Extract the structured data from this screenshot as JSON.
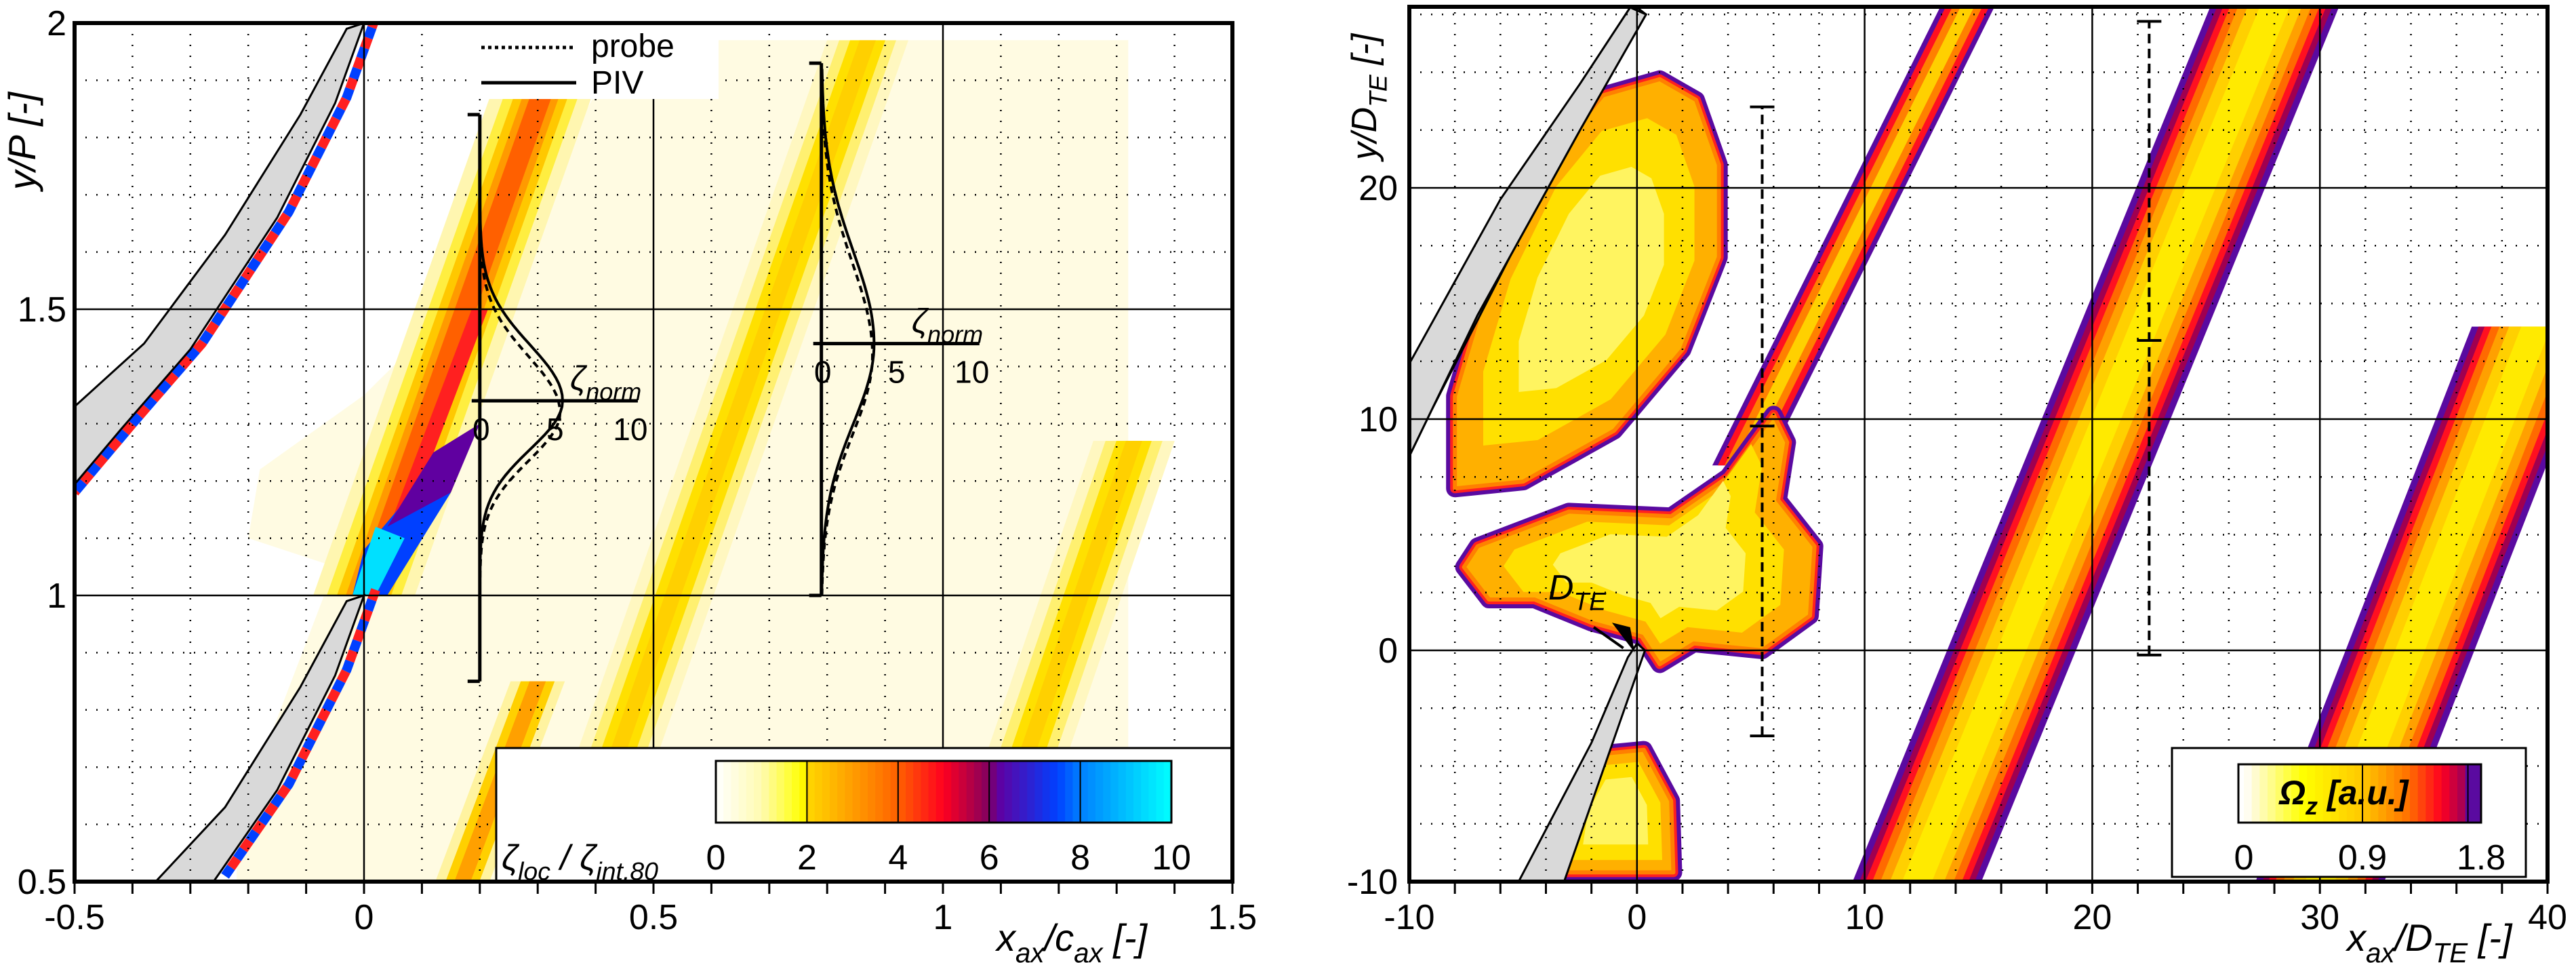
{
  "chart_data": [
    {
      "type": "heatmap",
      "variant": "filled-contour",
      "xlabel": {
        "a": "x",
        "a_sub": "ax",
        "sep": "/",
        "b": "c",
        "b_sub": "ax",
        "unit": " [-]"
      },
      "ylabel": {
        "a": "y",
        "sep": "/",
        "b": "P",
        "unit": " [-]"
      },
      "xlim": [
        -0.5,
        1.5
      ],
      "ylim": [
        0.5,
        2
      ],
      "x_ticks": [
        -0.5,
        0,
        0.5,
        1,
        1.5
      ],
      "x_tick_labels": [
        "-0.5",
        "0",
        "0.5",
        "1",
        "1.5"
      ],
      "y_ticks": [
        0.5,
        1,
        1.5,
        2
      ],
      "y_tick_labels": [
        "0.5",
        "1",
        "1.5",
        "2"
      ],
      "grid": {
        "major": "solid",
        "minor": "dotted"
      },
      "colorbar": {
        "label": {
          "a": "ζ",
          "a_sub": "loc",
          "sep": " / ",
          "b": "ζ",
          "b_sub": "int,80"
        },
        "range": [
          0,
          10
        ],
        "ticks": [
          0,
          2,
          4,
          6,
          8,
          10
        ],
        "tick_labels": [
          "0",
          "2",
          "4",
          "6",
          "8",
          "10"
        ],
        "colors": [
          "#ffffff",
          "#ffff00",
          "#ffa000",
          "#ff0020",
          "#6000a0",
          "#0060ff",
          "#00ffff"
        ],
        "placement": "bottom-right"
      },
      "legend": {
        "placement": "top-center",
        "entries": [
          {
            "label": "probe",
            "style": "dotted"
          },
          {
            "label": "PIV",
            "style": "solid"
          }
        ]
      },
      "profiles": [
        {
          "x_station": 0.2,
          "y_range": [
            0.85,
            1.84
          ],
          "axis_y": 1.34,
          "axis_label": {
            "a": "ζ",
            "a_sub": "norm"
          },
          "axis_ticks": [
            0,
            5,
            10
          ],
          "axis_tick_labels": [
            "0",
            "5",
            "10"
          ],
          "peak_value": 5.5,
          "peak_y": 1.34
        },
        {
          "x_station": 0.79,
          "y_range": [
            1.0,
            1.93
          ],
          "axis_y": 1.44,
          "axis_label": {
            "a": "ζ",
            "a_sub": "norm"
          },
          "axis_ticks": [
            0,
            5,
            10
          ],
          "axis_tick_labels": [
            "0",
            "5",
            "10"
          ],
          "peak_value": 3.5,
          "peak_y": 1.44
        }
      ]
    },
    {
      "type": "heatmap",
      "variant": "filled-contour",
      "xlabel": {
        "a": "x",
        "a_sub": "ax",
        "sep": "/",
        "b": "D",
        "b_sub": "TE",
        "unit": " [-]"
      },
      "ylabel": {
        "a": "y",
        "sep": "/",
        "b": "D",
        "b_sub": "TE",
        "unit": " [-]"
      },
      "xlim": [
        -10,
        40
      ],
      "ylim": [
        -10,
        27.8
      ],
      "x_ticks": [
        -10,
        0,
        10,
        20,
        30,
        40
      ],
      "x_tick_labels": [
        "-10",
        "0",
        "10",
        "20",
        "30",
        "40"
      ],
      "y_ticks": [
        -10,
        0,
        10,
        20
      ],
      "y_tick_labels": [
        "-10",
        "0",
        "10",
        "20"
      ],
      "grid": {
        "major": "solid",
        "minor": "dotted"
      },
      "colorbar": {
        "label": {
          "a": "Ω",
          "a_sub": "z",
          "unit": " [a.u.]"
        },
        "range": [
          0,
          1.8
        ],
        "ticks": [
          0,
          0.9,
          1.8
        ],
        "tick_labels": [
          "0",
          "0.9",
          "1.8"
        ],
        "colors": [
          "#ffffff",
          "#ffff00",
          "#ffa000",
          "#ff0020",
          "#900060",
          "#5a0aa0"
        ],
        "placement": "bottom-right"
      },
      "annotations": [
        {
          "label": {
            "a": "D",
            "a_sub": "TE"
          },
          "points_to": [
            0,
            0
          ]
        }
      ],
      "error_bars": [
        {
          "x": 5.5,
          "y_low": -3.7,
          "y_mid": 9.7,
          "y_high": 23.5
        },
        {
          "x": 22.5,
          "y_low": -0.2,
          "y_mid": 13.4,
          "y_high": 27.2
        }
      ]
    }
  ]
}
